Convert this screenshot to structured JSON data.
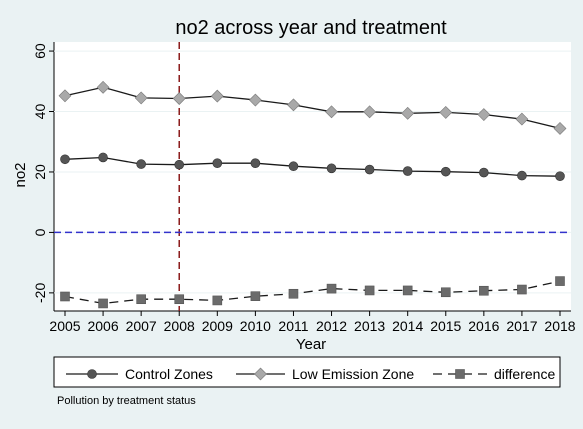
{
  "chart_data": {
    "type": "line",
    "title": "no2 across year and treatment",
    "xlabel": "Year",
    "ylabel": "no2",
    "x": [
      2005,
      2006,
      2007,
      2008,
      2009,
      2010,
      2011,
      2012,
      2013,
      2014,
      2015,
      2016,
      2017,
      2018
    ],
    "xlim": [
      2005,
      2018
    ],
    "ylim": [
      -26,
      63
    ],
    "yticks": [
      -20,
      0,
      20,
      40,
      60
    ],
    "ytick_labels": [
      "-20",
      "0",
      "20",
      "40",
      "60"
    ],
    "reference_lines": [
      {
        "axis": "x",
        "value": 2008,
        "color": "#8b1a1a",
        "style": "dashed"
      },
      {
        "axis": "y",
        "value": 0,
        "color": "#3333cc",
        "style": "dashed"
      }
    ],
    "series": [
      {
        "name": "Control Zones",
        "marker": "circle",
        "line_style": "solid",
        "color": "#555555",
        "values": [
          24.2,
          24.8,
          22.6,
          22.4,
          22.9,
          22.9,
          21.9,
          21.2,
          20.8,
          20.3,
          20.1,
          19.8,
          18.8,
          18.6
        ]
      },
      {
        "name": "Low Emission Zone",
        "marker": "diamond",
        "line_style": "solid",
        "color": "#a9a9a9",
        "values": [
          45.2,
          48.0,
          44.5,
          44.3,
          45.1,
          43.8,
          42.2,
          39.9,
          39.9,
          39.4,
          39.7,
          39.0,
          37.5,
          34.4
        ]
      },
      {
        "name": "difference",
        "marker": "square",
        "line_style": "dashed",
        "color": "#6b6b6b",
        "values": [
          -21.2,
          -23.5,
          -22.1,
          -22.1,
          -22.5,
          -21.1,
          -20.3,
          -18.6,
          -19.2,
          -19.2,
          -19.8,
          -19.3,
          -18.9,
          -16.1
        ]
      }
    ],
    "legend_position": "bottom",
    "note": "Pollution by treatment status"
  }
}
